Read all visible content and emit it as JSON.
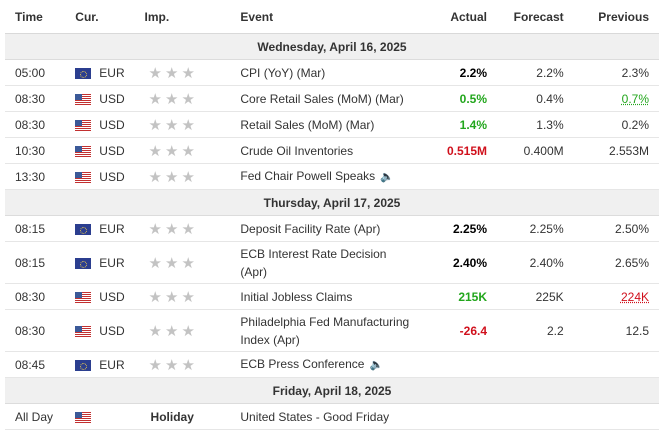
{
  "headers": {
    "time": "Time",
    "cur": "Cur.",
    "imp": "Imp.",
    "event": "Event",
    "actual": "Actual",
    "forecast": "Forecast",
    "previous": "Previous"
  },
  "colors": {
    "green": "#22a61c",
    "red": "#d0101c",
    "black": "#000000",
    "default": "#333333"
  },
  "days": {
    "d1": "Wednesday, April 16, 2025",
    "d2": "Thursday, April 17, 2025",
    "d3": "Friday, April 18, 2025"
  },
  "rows": [
    {
      "time": "05:00",
      "cur": "EUR",
      "flag": "eu-flag-icon",
      "event": "CPI (YoY) (Mar)",
      "actual": "2.2%",
      "actual_color": "black",
      "forecast": "2.2%",
      "previous": "2.3%",
      "previous_color": "default",
      "previous_underline": false
    },
    {
      "time": "08:30",
      "cur": "USD",
      "flag": "us-flag-icon",
      "event": "Core Retail Sales (MoM) (Mar)",
      "actual": "0.5%",
      "actual_color": "green",
      "forecast": "0.4%",
      "previous": "0.7%",
      "previous_color": "green",
      "previous_underline": true
    },
    {
      "time": "08:30",
      "cur": "USD",
      "flag": "us-flag-icon",
      "event": "Retail Sales (MoM) (Mar)",
      "actual": "1.4%",
      "actual_color": "green",
      "forecast": "1.3%",
      "previous": "0.2%",
      "previous_color": "default",
      "previous_underline": false
    },
    {
      "time": "10:30",
      "cur": "USD",
      "flag": "us-flag-icon",
      "event": "Crude Oil Inventories",
      "actual": "0.515M",
      "actual_color": "red",
      "forecast": "0.400M",
      "previous": "2.553M",
      "previous_color": "default",
      "previous_underline": false
    },
    {
      "time": "13:30",
      "cur": "USD",
      "flag": "us-flag-icon",
      "event": "Fed Chair Powell Speaks",
      "speaker": true,
      "actual": "",
      "actual_color": "default",
      "forecast": "",
      "previous": "",
      "previous_color": "default",
      "previous_underline": false
    },
    {
      "time": "08:15",
      "cur": "EUR",
      "flag": "eu-flag-icon",
      "event": "Deposit Facility Rate (Apr)",
      "actual": "2.25%",
      "actual_color": "black",
      "forecast": "2.25%",
      "previous": "2.50%",
      "previous_color": "default",
      "previous_underline": false
    },
    {
      "time": "08:15",
      "cur": "EUR",
      "flag": "eu-flag-icon",
      "event": "ECB Interest Rate Decision (Apr)",
      "actual": "2.40%",
      "actual_color": "black",
      "forecast": "2.40%",
      "previous": "2.65%",
      "previous_color": "default",
      "previous_underline": false
    },
    {
      "time": "08:30",
      "cur": "USD",
      "flag": "us-flag-icon",
      "event": "Initial Jobless Claims",
      "actual": "215K",
      "actual_color": "green",
      "forecast": "225K",
      "previous": "224K",
      "previous_color": "red",
      "previous_underline": true
    },
    {
      "time": "08:30",
      "cur": "USD",
      "flag": "us-flag-icon",
      "event": "Philadelphia Fed Manufacturing Index (Apr)",
      "actual": "-26.4",
      "actual_color": "red",
      "forecast": "2.2",
      "previous": "12.5",
      "previous_color": "default",
      "previous_underline": false
    },
    {
      "time": "08:45",
      "cur": "EUR",
      "flag": "eu-flag-icon",
      "event": "ECB Press Conference",
      "speaker": true,
      "actual": "",
      "actual_color": "default",
      "forecast": "",
      "previous": "",
      "previous_color": "default",
      "previous_underline": false
    }
  ],
  "holiday_row": {
    "time": "All Day",
    "flag": "us-flag-icon",
    "label": "Holiday",
    "event": "United States - Good Friday"
  }
}
